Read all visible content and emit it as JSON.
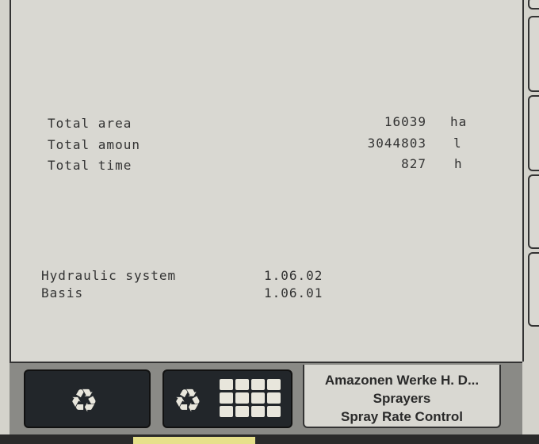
{
  "totals": [
    {
      "label": "Total area",
      "value": "16039",
      "unit": "ha"
    },
    {
      "label": "Total amoun",
      "value": "3044803",
      "unit": "l"
    },
    {
      "label": "Total time",
      "value": "827",
      "unit": "h"
    }
  ],
  "versions": [
    {
      "label": "Hydraulic system",
      "value": "1.06.02"
    },
    {
      "label": "Basis",
      "value": "1.06.01"
    }
  ],
  "buttons": {
    "reset_icon": "recycle-arrows-icon",
    "reset_grid_icon": "recycle-arrows-grid-icon"
  },
  "info": {
    "manufacturer": "Amazonen Werke H. D...",
    "category": "Sprayers",
    "function": "Spray Rate Control"
  },
  "colors": {
    "background": "#d9d8d2",
    "button": "#22262a",
    "active_tab": "#e6e08a"
  }
}
